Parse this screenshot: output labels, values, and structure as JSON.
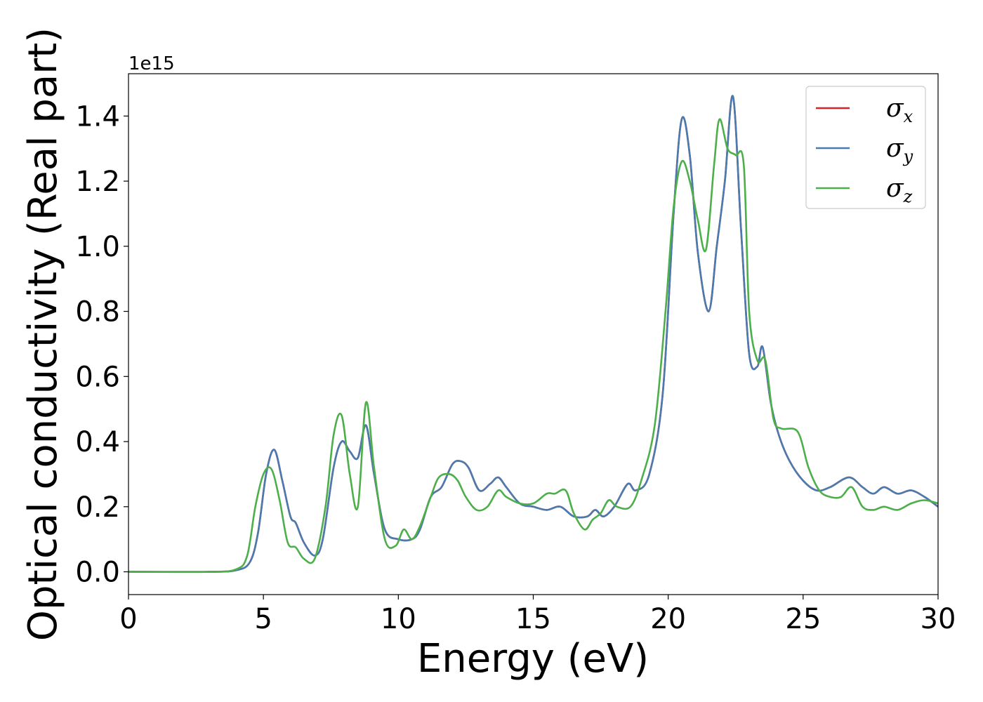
{
  "chart_data": {
    "type": "line",
    "title": "",
    "xlabel": "Energy (eV)",
    "ylabel": "Optical conductivity (Real part)",
    "y_offset_text": "1e15",
    "xlim": [
      0,
      30
    ],
    "ylim": [
      -0.07,
      1.53
    ],
    "xticks": [
      0,
      5,
      10,
      15,
      20,
      25,
      30
    ],
    "xtick_labels": [
      "0",
      "5",
      "10",
      "15",
      "20",
      "25",
      "30"
    ],
    "yticks": [
      0.0,
      0.2,
      0.4,
      0.6,
      0.8,
      1.0,
      1.2,
      1.4
    ],
    "ytick_labels": [
      "0.0",
      "0.2",
      "0.4",
      "0.6",
      "0.8",
      "1.0",
      "1.2",
      "1.4"
    ],
    "grid": false,
    "legend": {
      "position": "top-right",
      "entries": [
        {
          "symbol": "σ",
          "subscript": "x",
          "color": "#d62728"
        },
        {
          "symbol": "σ",
          "subscript": "y",
          "color": "#4a7bb0"
        },
        {
          "symbol": "σ",
          "subscript": "z",
          "color": "#4daf4a"
        }
      ]
    },
    "series": [
      {
        "name": "σx",
        "color": "#d62728",
        "x": [
          0,
          3,
          4,
          4.5,
          4.8,
          5.1,
          5.4,
          5.7,
          6.0,
          6.2,
          6.5,
          6.9,
          7.2,
          7.6,
          7.9,
          8.2,
          8.5,
          8.8,
          9.1,
          9.5,
          10.0,
          10.5,
          10.8,
          11.2,
          11.6,
          12.0,
          12.3,
          12.6,
          13.0,
          13.4,
          13.7,
          14.0,
          14.5,
          15.0,
          15.5,
          16.0,
          16.5,
          17.0,
          17.3,
          17.6,
          18.0,
          18.5,
          18.8,
          19.3,
          19.8,
          20.2,
          20.5,
          20.8,
          21.1,
          21.5,
          21.8,
          22.1,
          22.4,
          22.7,
          23.0,
          23.3,
          23.5,
          23.8,
          24.1,
          24.5,
          25.0,
          25.5,
          26.0,
          26.7,
          27.2,
          27.6,
          28.0,
          28.5,
          29.0,
          29.5,
          30.0
        ],
        "y": [
          0.0,
          0.0,
          0.005,
          0.03,
          0.12,
          0.3,
          0.375,
          0.28,
          0.17,
          0.15,
          0.09,
          0.05,
          0.1,
          0.32,
          0.4,
          0.37,
          0.35,
          0.45,
          0.3,
          0.13,
          0.1,
          0.1,
          0.13,
          0.23,
          0.26,
          0.33,
          0.34,
          0.32,
          0.25,
          0.27,
          0.29,
          0.26,
          0.21,
          0.2,
          0.19,
          0.2,
          0.17,
          0.17,
          0.19,
          0.17,
          0.2,
          0.27,
          0.25,
          0.3,
          0.55,
          1.1,
          1.39,
          1.28,
          0.98,
          0.8,
          1.0,
          1.2,
          1.46,
          1.05,
          0.67,
          0.63,
          0.69,
          0.52,
          0.42,
          0.34,
          0.28,
          0.25,
          0.26,
          0.29,
          0.26,
          0.24,
          0.26,
          0.24,
          0.25,
          0.23,
          0.2
        ]
      },
      {
        "name": "σy",
        "color": "#4a7bb0",
        "x": [
          0,
          3,
          4,
          4.5,
          4.8,
          5.1,
          5.4,
          5.7,
          6.0,
          6.2,
          6.5,
          6.9,
          7.2,
          7.6,
          7.9,
          8.2,
          8.5,
          8.8,
          9.1,
          9.5,
          10.0,
          10.5,
          10.8,
          11.2,
          11.6,
          12.0,
          12.3,
          12.6,
          13.0,
          13.4,
          13.7,
          14.0,
          14.5,
          15.0,
          15.5,
          16.0,
          16.5,
          17.0,
          17.3,
          17.6,
          18.0,
          18.5,
          18.8,
          19.3,
          19.8,
          20.2,
          20.5,
          20.8,
          21.1,
          21.5,
          21.8,
          22.1,
          22.4,
          22.7,
          23.0,
          23.3,
          23.5,
          23.8,
          24.1,
          24.5,
          25.0,
          25.5,
          26.0,
          26.7,
          27.2,
          27.6,
          28.0,
          28.5,
          29.0,
          29.5,
          30.0
        ],
        "y": [
          0.0,
          0.0,
          0.005,
          0.03,
          0.12,
          0.3,
          0.375,
          0.28,
          0.17,
          0.15,
          0.09,
          0.05,
          0.1,
          0.32,
          0.4,
          0.37,
          0.35,
          0.45,
          0.3,
          0.13,
          0.1,
          0.1,
          0.13,
          0.23,
          0.26,
          0.33,
          0.34,
          0.32,
          0.25,
          0.27,
          0.29,
          0.26,
          0.21,
          0.2,
          0.19,
          0.2,
          0.17,
          0.17,
          0.19,
          0.17,
          0.2,
          0.27,
          0.25,
          0.3,
          0.55,
          1.1,
          1.39,
          1.28,
          0.98,
          0.8,
          1.0,
          1.2,
          1.46,
          1.05,
          0.67,
          0.63,
          0.69,
          0.52,
          0.42,
          0.34,
          0.28,
          0.25,
          0.26,
          0.29,
          0.26,
          0.24,
          0.26,
          0.24,
          0.25,
          0.23,
          0.2
        ]
      },
      {
        "name": "σz",
        "color": "#4daf4a",
        "x": [
          0,
          3,
          4,
          4.4,
          4.7,
          5.0,
          5.3,
          5.6,
          5.9,
          6.2,
          6.5,
          6.9,
          7.3,
          7.6,
          7.9,
          8.2,
          8.5,
          8.8,
          9.1,
          9.5,
          9.9,
          10.2,
          10.5,
          10.8,
          11.2,
          11.5,
          11.9,
          12.2,
          12.5,
          12.9,
          13.3,
          13.7,
          14.0,
          14.5,
          15.0,
          15.5,
          15.8,
          16.2,
          16.5,
          16.9,
          17.2,
          17.5,
          17.8,
          18.1,
          18.6,
          19.0,
          19.5,
          19.9,
          20.2,
          20.5,
          20.8,
          21.1,
          21.4,
          21.7,
          21.9,
          22.2,
          22.5,
          22.8,
          23.0,
          23.3,
          23.6,
          23.9,
          24.2,
          24.8,
          25.2,
          25.6,
          26.0,
          26.4,
          26.8,
          27.2,
          27.6,
          28.0,
          28.5,
          29.0,
          29.5,
          30.0
        ],
        "y": [
          0.0,
          0.0,
          0.008,
          0.05,
          0.2,
          0.3,
          0.315,
          0.22,
          0.09,
          0.075,
          0.04,
          0.04,
          0.2,
          0.42,
          0.48,
          0.3,
          0.2,
          0.52,
          0.32,
          0.1,
          0.08,
          0.13,
          0.1,
          0.14,
          0.23,
          0.29,
          0.3,
          0.28,
          0.23,
          0.19,
          0.2,
          0.25,
          0.23,
          0.21,
          0.21,
          0.24,
          0.24,
          0.25,
          0.18,
          0.13,
          0.16,
          0.18,
          0.22,
          0.2,
          0.2,
          0.28,
          0.45,
          0.8,
          1.12,
          1.26,
          1.2,
          1.08,
          0.99,
          1.25,
          1.39,
          1.3,
          1.28,
          1.25,
          0.8,
          0.65,
          0.65,
          0.47,
          0.44,
          0.43,
          0.32,
          0.25,
          0.23,
          0.23,
          0.26,
          0.2,
          0.19,
          0.2,
          0.19,
          0.21,
          0.22,
          0.21
        ]
      }
    ]
  }
}
